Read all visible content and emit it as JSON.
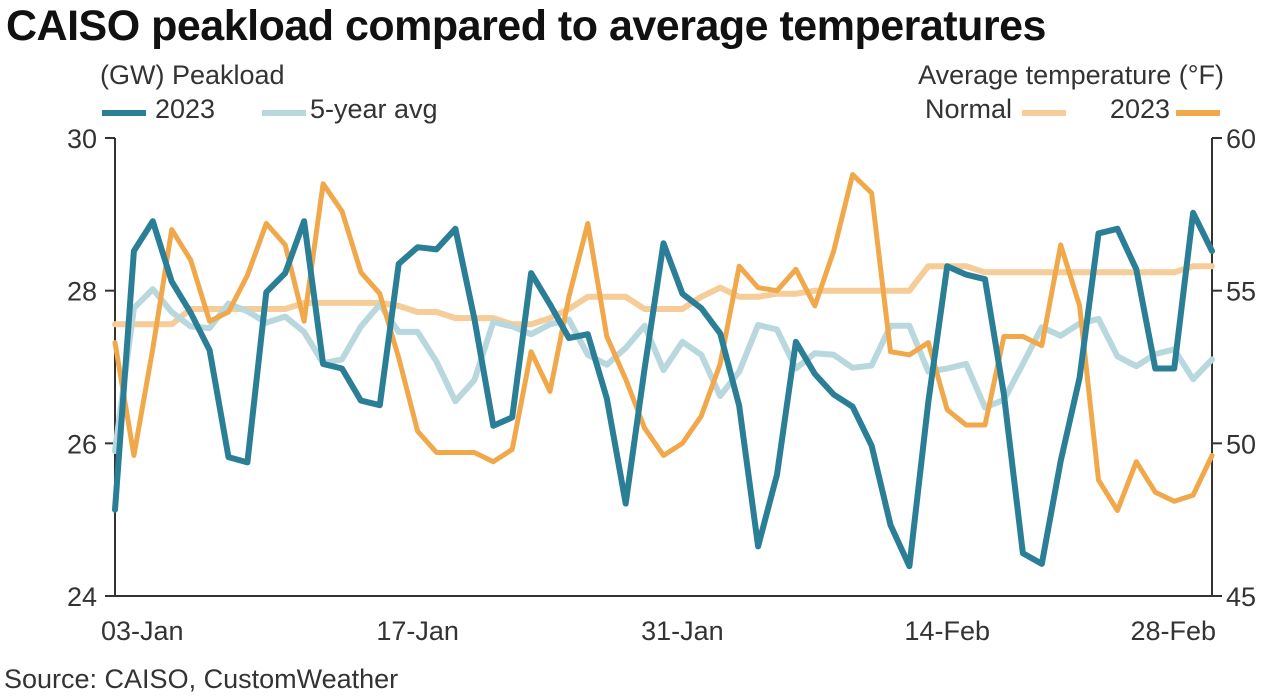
{
  "title": "CAISO peakload compared to average temperatures",
  "left_axis_title": "(GW) Peakload",
  "right_axis_title": "Average temperature (°F)",
  "legend": {
    "load_2023": "2023",
    "load_avg": "5-year avg",
    "temp_normal": "Normal",
    "temp_2023": "2023"
  },
  "source": "Source: CAISO, CustomWeather",
  "colors": {
    "load_2023": "#2a7f97",
    "load_avg": "#b8d8de",
    "temp_normal": "#f6cc98",
    "temp_2023": "#f0a84a",
    "axis": "#333333"
  },
  "chart_data": {
    "type": "line",
    "title": "CAISO peakload compared to average temperatures",
    "x_labels": [
      "03-Jan",
      "17-Jan",
      "31-Jan",
      "14-Feb",
      "28-Feb"
    ],
    "x_label_day_index": [
      2,
      16,
      30,
      44,
      58
    ],
    "x_range_days": [
      "01-Jan",
      "28-Feb"
    ],
    "left_axis": {
      "label": "(GW) Peakload",
      "ylim": [
        24,
        30
      ],
      "ticks": [
        24,
        26,
        28,
        30
      ]
    },
    "right_axis": {
      "label": "Average temperature (°F)",
      "ylim": [
        45,
        60
      ],
      "ticks": [
        45,
        50,
        55,
        60
      ]
    },
    "grid": false,
    "legend_position": "top",
    "series": [
      {
        "name": "2023",
        "axis": "left",
        "values": [
          25.13,
          28.52,
          28.91,
          28.12,
          27.71,
          27.22,
          25.82,
          25.75,
          27.98,
          28.23,
          28.91,
          27.04,
          26.98,
          26.56,
          26.5,
          28.35,
          28.57,
          28.54,
          28.81,
          27.63,
          26.23,
          26.34,
          28.23,
          27.82,
          27.38,
          27.43,
          26.59,
          25.21,
          26.98,
          28.62,
          27.96,
          27.77,
          27.44,
          26.49,
          24.65,
          25.59,
          27.33,
          26.91,
          26.64,
          26.48,
          25.97,
          24.93,
          24.39,
          26.54,
          28.32,
          28.21,
          28.15,
          26.64,
          24.56,
          24.42,
          25.77,
          26.86,
          28.75,
          28.81,
          28.28,
          26.98,
          26.98,
          29.02,
          28.52
        ]
      },
      {
        "name": "5-year avg",
        "axis": "left",
        "values": [
          25.9,
          27.77,
          28.02,
          27.72,
          27.53,
          27.51,
          27.83,
          27.73,
          27.58,
          27.66,
          27.46,
          27.05,
          27.1,
          27.53,
          27.82,
          27.46,
          27.46,
          27.07,
          26.55,
          26.83,
          27.59,
          27.53,
          27.43,
          27.56,
          27.62,
          27.16,
          27.03,
          27.25,
          27.54,
          26.96,
          27.33,
          27.16,
          26.62,
          26.94,
          27.55,
          27.49,
          26.98,
          27.18,
          27.16,
          26.99,
          27.02,
          27.54,
          27.54,
          26.94,
          26.98,
          27.04,
          26.47,
          26.57,
          27.04,
          27.52,
          27.41,
          27.57,
          27.63,
          27.14,
          27.01,
          27.17,
          27.23,
          26.84,
          27.1
        ]
      },
      {
        "name": "Normal",
        "axis": "right",
        "values": [
          53.9,
          53.9,
          53.9,
          53.9,
          54.4,
          54.4,
          54.4,
          54.4,
          54.4,
          54.4,
          54.6,
          54.6,
          54.6,
          54.6,
          54.6,
          54.5,
          54.3,
          54.3,
          54.1,
          54.1,
          54.1,
          53.9,
          53.9,
          54.1,
          54.4,
          54.8,
          54.8,
          54.8,
          54.4,
          54.4,
          54.4,
          54.8,
          55.1,
          54.8,
          54.8,
          54.9,
          54.9,
          55.0,
          55.0,
          55.0,
          55.0,
          55.0,
          55.0,
          55.8,
          55.8,
          55.8,
          55.6,
          55.6,
          55.6,
          55.6,
          55.6,
          55.6,
          55.6,
          55.6,
          55.6,
          55.6,
          55.6,
          55.8,
          55.8
        ]
      },
      {
        "name": "2023",
        "axis": "right",
        "values": [
          53.3,
          49.6,
          53.1,
          57.0,
          56.0,
          54.0,
          54.3,
          55.5,
          57.2,
          56.5,
          54.0,
          58.5,
          57.6,
          55.6,
          54.9,
          52.8,
          50.4,
          49.7,
          49.7,
          49.7,
          49.4,
          49.8,
          53.0,
          51.7,
          54.8,
          57.2,
          53.5,
          52.1,
          50.5,
          49.6,
          50.0,
          50.9,
          52.6,
          55.8,
          55.1,
          55.0,
          55.7,
          54.5,
          56.3,
          58.8,
          58.2,
          53.0,
          52.9,
          53.3,
          51.1,
          50.6,
          50.6,
          53.5,
          53.5,
          53.2,
          56.5,
          54.5,
          48.8,
          47.8,
          49.4,
          48.4,
          48.1,
          48.3,
          49.6
        ]
      }
    ]
  }
}
